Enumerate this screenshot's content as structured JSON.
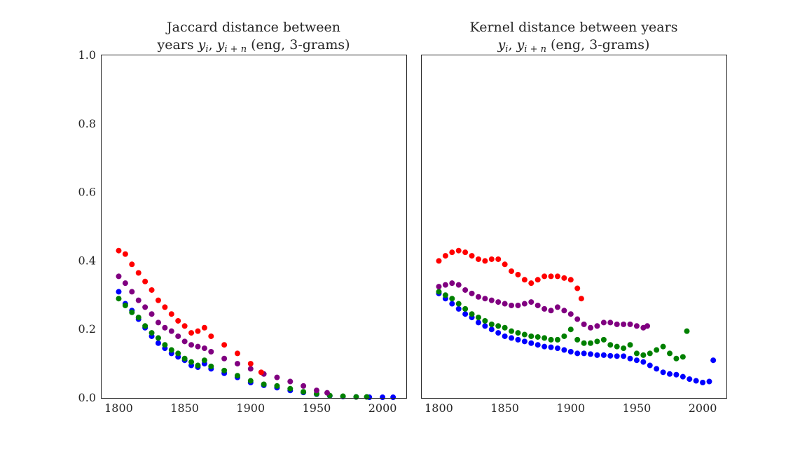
{
  "chart_data": [
    {
      "type": "scatter",
      "title_line1": "Jaccard distance between",
      "title_line2_prefix": "years ",
      "title_var1": "y",
      "title_sub1": "i",
      "title_var2": "y",
      "title_sub2": "i + n",
      "title_suffix": " (eng, 3-grams)",
      "xlabel": "",
      "ylabel": "",
      "xlim": [
        1787,
        2018
      ],
      "ylim": [
        0.0,
        1.0
      ],
      "xticks": [
        "1800",
        "1850",
        "1900",
        "1950",
        "2000"
      ],
      "yticks": [
        "0.0",
        "0.2",
        "0.4",
        "0.6",
        "0.8",
        "1.0"
      ],
      "grid": false,
      "series": [
        {
          "color": "#0000ff",
          "x": [
            1800,
            1805,
            1810,
            1815,
            1820,
            1825,
            1830,
            1835,
            1840,
            1845,
            1850,
            1855,
            1860,
            1865,
            1870,
            1880,
            1890,
            1900,
            1910,
            1920,
            1930,
            1940,
            1950,
            1960,
            1970,
            1980,
            1990,
            2000,
            2008
          ],
          "y": [
            0.31,
            0.275,
            0.255,
            0.23,
            0.205,
            0.18,
            0.16,
            0.145,
            0.13,
            0.12,
            0.11,
            0.095,
            0.09,
            0.1,
            0.085,
            0.072,
            0.06,
            0.045,
            0.037,
            0.03,
            0.022,
            0.016,
            0.011,
            0.006,
            0.004,
            0.003,
            0.002,
            0.002,
            0.002
          ]
        },
        {
          "color": "#008000",
          "x": [
            1800,
            1805,
            1810,
            1815,
            1820,
            1825,
            1830,
            1835,
            1840,
            1845,
            1850,
            1855,
            1860,
            1865,
            1870,
            1880,
            1890,
            1900,
            1910,
            1920,
            1930,
            1940,
            1950,
            1960,
            1970,
            1980,
            1988
          ],
          "y": [
            0.29,
            0.27,
            0.25,
            0.235,
            0.21,
            0.19,
            0.175,
            0.155,
            0.14,
            0.13,
            0.115,
            0.105,
            0.095,
            0.11,
            0.092,
            0.08,
            0.065,
            0.05,
            0.04,
            0.035,
            0.027,
            0.018,
            0.012,
            0.007,
            0.005,
            0.003,
            0.003
          ]
        },
        {
          "color": "#800080",
          "x": [
            1800,
            1805,
            1810,
            1815,
            1820,
            1825,
            1830,
            1835,
            1840,
            1845,
            1850,
            1855,
            1860,
            1865,
            1870,
            1880,
            1890,
            1900,
            1910,
            1920,
            1930,
            1940,
            1950,
            1958
          ],
          "y": [
            0.355,
            0.335,
            0.31,
            0.285,
            0.265,
            0.245,
            0.22,
            0.205,
            0.195,
            0.18,
            0.165,
            0.155,
            0.15,
            0.145,
            0.135,
            0.115,
            0.1,
            0.085,
            0.07,
            0.06,
            0.048,
            0.035,
            0.022,
            0.015
          ]
        },
        {
          "color": "#ff0000",
          "x": [
            1800,
            1805,
            1810,
            1815,
            1820,
            1825,
            1830,
            1835,
            1840,
            1845,
            1850,
            1855,
            1860,
            1865,
            1870,
            1880,
            1890,
            1900,
            1908
          ],
          "y": [
            0.43,
            0.42,
            0.39,
            0.365,
            0.34,
            0.315,
            0.285,
            0.265,
            0.245,
            0.225,
            0.21,
            0.19,
            0.195,
            0.205,
            0.18,
            0.155,
            0.13,
            0.1,
            0.075
          ]
        }
      ]
    },
    {
      "type": "scatter",
      "title_line1": "Kernel distance between years",
      "title_line2_prefix": "",
      "title_var1": "y",
      "title_sub1": "i",
      "title_var2": "y",
      "title_sub2": "i + n",
      "title_suffix": " (eng, 3-grams)",
      "xlabel": "",
      "ylabel": "",
      "xlim": [
        1787,
        2018
      ],
      "ylim": [
        0.0,
        1.0
      ],
      "xticks": [
        "1800",
        "1850",
        "1900",
        "1950",
        "2000"
      ],
      "yticks": [],
      "grid": false,
      "series": [
        {
          "color": "#0000ff",
          "x": [
            1800,
            1805,
            1810,
            1815,
            1820,
            1825,
            1830,
            1835,
            1840,
            1845,
            1850,
            1855,
            1860,
            1865,
            1870,
            1875,
            1880,
            1885,
            1890,
            1895,
            1900,
            1905,
            1910,
            1915,
            1920,
            1925,
            1930,
            1935,
            1940,
            1945,
            1950,
            1955,
            1960,
            1965,
            1970,
            1975,
            1980,
            1985,
            1990,
            1995,
            2000,
            2005,
            2008
          ],
          "y": [
            0.305,
            0.29,
            0.275,
            0.26,
            0.245,
            0.235,
            0.22,
            0.21,
            0.2,
            0.19,
            0.18,
            0.175,
            0.17,
            0.165,
            0.16,
            0.155,
            0.15,
            0.148,
            0.145,
            0.14,
            0.135,
            0.13,
            0.13,
            0.128,
            0.125,
            0.125,
            0.123,
            0.122,
            0.122,
            0.115,
            0.11,
            0.105,
            0.095,
            0.085,
            0.075,
            0.07,
            0.068,
            0.062,
            0.055,
            0.05,
            0.045,
            0.048,
            0.11
          ]
        },
        {
          "color": "#008000",
          "x": [
            1800,
            1805,
            1810,
            1815,
            1820,
            1825,
            1830,
            1835,
            1840,
            1845,
            1850,
            1855,
            1860,
            1865,
            1870,
            1875,
            1880,
            1885,
            1890,
            1895,
            1900,
            1905,
            1910,
            1915,
            1920,
            1925,
            1930,
            1935,
            1940,
            1945,
            1950,
            1955,
            1960,
            1965,
            1970,
            1975,
            1980,
            1985,
            1988
          ],
          "y": [
            0.31,
            0.3,
            0.29,
            0.275,
            0.26,
            0.245,
            0.235,
            0.225,
            0.215,
            0.21,
            0.205,
            0.195,
            0.19,
            0.185,
            0.18,
            0.178,
            0.175,
            0.17,
            0.17,
            0.18,
            0.2,
            0.17,
            0.16,
            0.16,
            0.165,
            0.17,
            0.155,
            0.15,
            0.145,
            0.155,
            0.13,
            0.125,
            0.13,
            0.14,
            0.15,
            0.13,
            0.115,
            0.12,
            0.195
          ]
        },
        {
          "color": "#800080",
          "x": [
            1800,
            1805,
            1810,
            1815,
            1820,
            1825,
            1830,
            1835,
            1840,
            1845,
            1850,
            1855,
            1860,
            1865,
            1870,
            1875,
            1880,
            1885,
            1890,
            1895,
            1900,
            1905,
            1910,
            1915,
            1920,
            1925,
            1930,
            1935,
            1940,
            1945,
            1950,
            1955,
            1958
          ],
          "y": [
            0.325,
            0.33,
            0.335,
            0.33,
            0.315,
            0.305,
            0.295,
            0.29,
            0.285,
            0.28,
            0.275,
            0.27,
            0.27,
            0.275,
            0.28,
            0.27,
            0.26,
            0.255,
            0.265,
            0.255,
            0.245,
            0.23,
            0.215,
            0.205,
            0.21,
            0.22,
            0.22,
            0.215,
            0.215,
            0.215,
            0.21,
            0.205,
            0.21
          ]
        },
        {
          "color": "#ff0000",
          "x": [
            1800,
            1805,
            1810,
            1815,
            1820,
            1825,
            1830,
            1835,
            1840,
            1845,
            1850,
            1855,
            1860,
            1865,
            1870,
            1875,
            1880,
            1885,
            1890,
            1895,
            1900,
            1905,
            1908
          ],
          "y": [
            0.4,
            0.415,
            0.425,
            0.43,
            0.425,
            0.415,
            0.405,
            0.4,
            0.405,
            0.405,
            0.39,
            0.37,
            0.36,
            0.345,
            0.335,
            0.345,
            0.355,
            0.355,
            0.355,
            0.35,
            0.345,
            0.32,
            0.29
          ]
        }
      ]
    }
  ]
}
